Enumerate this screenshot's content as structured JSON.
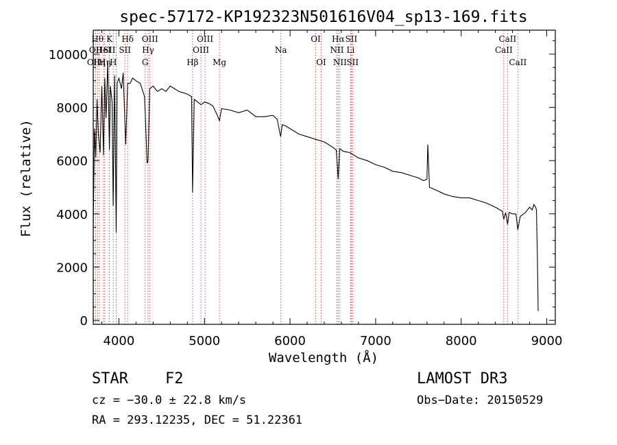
{
  "chart_data": {
    "type": "line",
    "title": "spec-57172-KP192323N501616V04_sp13-169.fits",
    "xlabel": "Wavelength (Å)",
    "ylabel": "Flux (relative)",
    "xlim": [
      3700,
      9100
    ],
    "ylim": [
      -150,
      10900
    ],
    "xticks": [
      4000,
      5000,
      6000,
      7000,
      8000,
      9000
    ],
    "yticks": [
      0,
      2000,
      4000,
      6000,
      8000,
      10000
    ],
    "series": [
      {
        "name": "spectrum",
        "x": [
          3700,
          3715,
          3730,
          3745,
          3760,
          3780,
          3800,
          3820,
          3835,
          3850,
          3870,
          3889,
          3900,
          3920,
          3933,
          3950,
          3968,
          3980,
          4000,
          4030,
          4050,
          4080,
          4102,
          4130,
          4160,
          4200,
          4250,
          4300,
          4330,
          4341,
          4360,
          4400,
          4450,
          4500,
          4550,
          4600,
          4650,
          4700,
          4750,
          4800,
          4850,
          4861,
          4880,
          4920,
          4960,
          5000,
          5050,
          5100,
          5150,
          5175,
          5200,
          5300,
          5400,
          5500,
          5600,
          5700,
          5800,
          5850,
          5890,
          5910,
          5950,
          6000,
          6100,
          6200,
          6300,
          6400,
          6450,
          6500,
          6540,
          6563,
          6580,
          6620,
          6700,
          6800,
          6900,
          7000,
          7100,
          7200,
          7300,
          7400,
          7500,
          7560,
          7600,
          7610,
          7630,
          7700,
          7800,
          7900,
          8000,
          8100,
          8200,
          8300,
          8400,
          8480,
          8498,
          8520,
          8542,
          8560,
          8600,
          8640,
          8662,
          8690,
          8750,
          8800,
          8830,
          8850,
          8870,
          8880,
          8890,
          8900
        ],
        "values": [
          3600,
          7200,
          6100,
          8300,
          7000,
          6300,
          8800,
          6200,
          9100,
          7600,
          9700,
          6400,
          8800,
          8200,
          4300,
          9200,
          3300,
          8900,
          9100,
          8700,
          9300,
          6600,
          8900,
          8900,
          9100,
          9000,
          8900,
          8400,
          5900,
          6000,
          8700,
          8800,
          8600,
          8700,
          8600,
          8800,
          8700,
          8600,
          8550,
          8500,
          8400,
          4800,
          8300,
          8200,
          8100,
          8200,
          8150,
          8050,
          7700,
          7500,
          7950,
          7900,
          7800,
          7900,
          7650,
          7650,
          7700,
          7550,
          6900,
          7350,
          7300,
          7200,
          7000,
          6900,
          6800,
          6700,
          6600,
          6500,
          6400,
          5300,
          6450,
          6350,
          6300,
          6100,
          6000,
          5850,
          5750,
          5600,
          5550,
          5450,
          5350,
          5250,
          5300,
          6600,
          5000,
          4900,
          4750,
          4650,
          4600,
          4600,
          4500,
          4400,
          4250,
          4100,
          3800,
          4050,
          3600,
          4050,
          4000,
          4000,
          3400,
          3900,
          4050,
          4250,
          4150,
          4350,
          4250,
          4150,
          2500,
          350
        ]
      }
    ],
    "line_markers": [
      {
        "w": 3704,
        "label": "OII",
        "row": 2
      },
      {
        "w": 3728,
        "label": "OII",
        "row": 1
      },
      {
        "w": 3750,
        "label": "Hθ",
        "row": 0
      },
      {
        "w": 3771,
        "label": "Hη",
        "row": 2
      },
      {
        "w": 3820,
        "label": "HeI",
        "row": 1
      },
      {
        "w": 3835,
        "label": "Hη",
        "row": 2
      },
      {
        "w": 3889,
        "label": "K",
        "row": 0
      },
      {
        "w": 3889,
        "label": "SII",
        "row": 1
      },
      {
        "w": 3934,
        "label": "H",
        "row": 2
      },
      {
        "w": 3968,
        "label": "",
        "row": 0
      },
      {
        "w": 4070,
        "label": "SII",
        "row": 1
      },
      {
        "w": 4102,
        "label": "Hδ",
        "row": 0
      },
      {
        "w": 4307,
        "label": "G",
        "row": 2
      },
      {
        "w": 4341,
        "label": "Hγ",
        "row": 1
      },
      {
        "w": 4363,
        "label": "OIII",
        "row": 0
      },
      {
        "w": 4861,
        "label": "Hβ",
        "row": 2
      },
      {
        "w": 4959,
        "label": "OIII",
        "row": 1
      },
      {
        "w": 5007,
        "label": "OIII",
        "row": 0
      },
      {
        "w": 5175,
        "label": "Mg",
        "row": 2
      },
      {
        "w": 5893,
        "label": "Na",
        "row": 1
      },
      {
        "w": 6300,
        "label": "OI",
        "row": 0
      },
      {
        "w": 6364,
        "label": "OI",
        "row": 2
      },
      {
        "w": 6548,
        "label": "NII",
        "row": 1
      },
      {
        "w": 6563,
        "label": "Hα",
        "row": 0
      },
      {
        "w": 6583,
        "label": "NII",
        "row": 2
      },
      {
        "w": 6708,
        "label": "Li",
        "row": 1
      },
      {
        "w": 6716,
        "label": "SII",
        "row": 0
      },
      {
        "w": 6731,
        "label": "SII",
        "row": 2
      },
      {
        "w": 8498,
        "label": "CaII",
        "row": 1
      },
      {
        "w": 8542,
        "label": "CaII",
        "row": 0
      },
      {
        "w": 8662,
        "label": "CaII",
        "row": 2
      }
    ]
  },
  "info": {
    "class": "STAR",
    "subclass": "F2",
    "survey": "LAMOST DR3",
    "cz": "cz = −30.0 ± 22.8 km/s",
    "obs_date": "Obs−Date: 20150529",
    "coords": "RA = 293.12235, DEC =  51.22361"
  }
}
